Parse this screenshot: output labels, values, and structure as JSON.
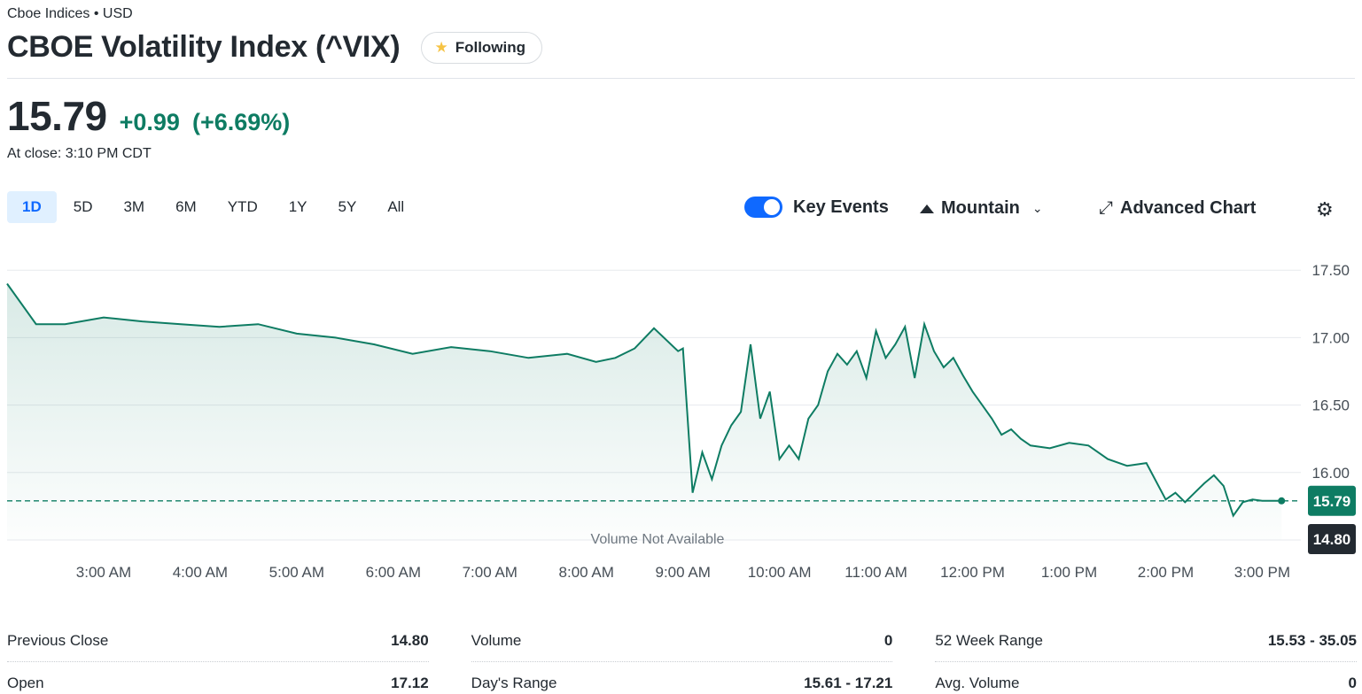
{
  "header": {
    "exchange": "Cboe Indices • USD",
    "title": "CBOE Volatility Index (^VIX)",
    "follow_label": "Following"
  },
  "quote": {
    "price": "15.79",
    "change": "+0.99",
    "change_pct": "(+6.69%)",
    "close_time": "At close: 3:10 PM CDT"
  },
  "ranges": [
    "1D",
    "5D",
    "3M",
    "6M",
    "YTD",
    "1Y",
    "5Y",
    "All"
  ],
  "active_range": "1D",
  "tools": {
    "key_events_label": "Key Events",
    "key_events_on": true,
    "chart_type_label": "Mountain",
    "advanced_label": "Advanced Chart"
  },
  "colors": {
    "line": "#0e7c63",
    "up": "#0e7c63",
    "prev_close_badge": "#232a31",
    "accent": "#0f69ff"
  },
  "chart_data": {
    "type": "area",
    "x_ticks": [
      "3:00 AM",
      "4:00 AM",
      "5:00 AM",
      "6:00 AM",
      "7:00 AM",
      "8:00 AM",
      "9:00 AM",
      "10:00 AM",
      "11:00 AM",
      "12:00 PM",
      "1:00 PM",
      "2:00 PM",
      "3:00 PM"
    ],
    "y_ticks": [
      "17.50",
      "17.00",
      "16.50",
      "16.00"
    ],
    "ylim": [
      15.5,
      17.6
    ],
    "x_hours": [
      2.0,
      2.3,
      2.6,
      3.0,
      3.4,
      3.8,
      4.2,
      4.6,
      5.0,
      5.4,
      5.8,
      6.2,
      6.6,
      7.0,
      7.4,
      7.8,
      8.1,
      8.3,
      8.5,
      8.7,
      8.95,
      9.0,
      9.1,
      9.2,
      9.3,
      9.4,
      9.5,
      9.6,
      9.7,
      9.8,
      9.9,
      10.0,
      10.1,
      10.2,
      10.3,
      10.4,
      10.5,
      10.6,
      10.7,
      10.8,
      10.9,
      11.0,
      11.1,
      11.2,
      11.3,
      11.4,
      11.5,
      11.6,
      11.7,
      11.8,
      11.9,
      12.0,
      12.1,
      12.2,
      12.3,
      12.4,
      12.5,
      12.6,
      12.8,
      13.0,
      13.2,
      13.4,
      13.6,
      13.8,
      14.0,
      14.1,
      14.2,
      14.3,
      14.4,
      14.5,
      14.6,
      14.7,
      14.8,
      14.9,
      15.0,
      15.1,
      15.2
    ],
    "values": [
      17.4,
      17.1,
      17.1,
      17.15,
      17.12,
      17.1,
      17.08,
      17.1,
      17.03,
      17.0,
      16.95,
      16.88,
      16.93,
      16.9,
      16.85,
      16.88,
      16.82,
      16.85,
      16.92,
      17.07,
      16.9,
      16.92,
      15.85,
      16.15,
      15.95,
      16.2,
      16.35,
      16.45,
      16.95,
      16.4,
      16.6,
      16.1,
      16.2,
      16.1,
      16.4,
      16.5,
      16.75,
      16.88,
      16.8,
      16.9,
      16.7,
      17.05,
      16.85,
      16.95,
      17.08,
      16.7,
      17.1,
      16.9,
      16.78,
      16.85,
      16.72,
      16.6,
      16.5,
      16.4,
      16.28,
      16.32,
      16.25,
      16.2,
      16.18,
      16.22,
      16.2,
      16.1,
      16.05,
      16.07,
      15.8,
      15.85,
      15.78,
      15.85,
      15.92,
      15.98,
      15.9,
      15.68,
      15.78,
      15.8,
      15.79,
      15.79,
      15.79
    ],
    "prev_close": 14.8,
    "last": 15.79,
    "last_label": "15.79",
    "prev_close_label": "14.80",
    "volume_note": "Volume Not Available"
  },
  "stats": {
    "col1": [
      {
        "label": "Previous Close",
        "value": "14.80"
      },
      {
        "label": "Open",
        "value": "17.12"
      }
    ],
    "col2": [
      {
        "label": "Volume",
        "value": "0"
      },
      {
        "label": "Day's Range",
        "value": "15.61 - 17.21"
      }
    ],
    "col3": [
      {
        "label": "52 Week Range",
        "value": "15.53 - 35.05"
      },
      {
        "label": "Avg. Volume",
        "value": "0"
      }
    ]
  }
}
